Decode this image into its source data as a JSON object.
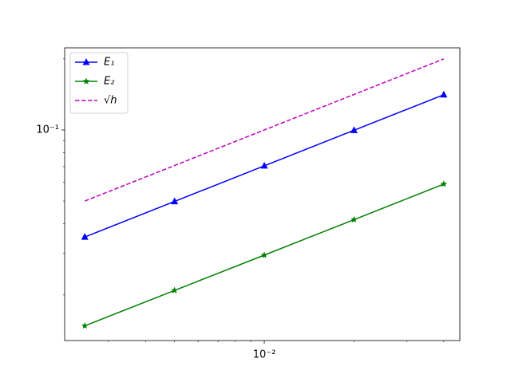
{
  "chart_data": {
    "type": "line",
    "log_x": true,
    "log_y": true,
    "x": [
      0.0025,
      0.005,
      0.01,
      0.02,
      0.04
    ],
    "series": [
      {
        "name": "E₁",
        "color": "#0000ff",
        "marker": "triangle",
        "linestyle": "solid",
        "values": [
          0.0352,
          0.0498,
          0.0705,
          0.0997,
          0.141
        ]
      },
      {
        "name": "E₂",
        "color": "#008000",
        "marker": "star",
        "linestyle": "solid",
        "values": [
          0.0148,
          0.0209,
          0.0295,
          0.0417,
          0.059
        ]
      },
      {
        "name": "√h",
        "color": "#bf00bf",
        "marker": "none",
        "linestyle": "dashed",
        "values": [
          0.05,
          0.0707,
          0.1,
          0.1414,
          0.2
        ]
      }
    ],
    "xlim": [
      0.00214,
      0.0453
    ],
    "ylim": [
      0.01282,
      0.2228
    ],
    "xticks": [
      {
        "value": 0.01,
        "label": "10⁻²"
      }
    ],
    "yticks": [
      {
        "value": 0.1,
        "label": "10⁻¹"
      }
    ],
    "xminorticks": [
      0.003,
      0.004,
      0.005,
      0.006,
      0.007,
      0.008,
      0.009,
      0.02,
      0.03,
      0.04
    ],
    "yminorticks": [
      0.02,
      0.03,
      0.04,
      0.05,
      0.06,
      0.07,
      0.08,
      0.09,
      0.2
    ],
    "legend": "upper left"
  }
}
